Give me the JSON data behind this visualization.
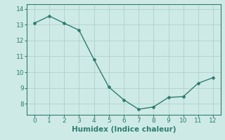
{
  "x": [
    0,
    1,
    2,
    3,
    4,
    5,
    6,
    7,
    8,
    9,
    10,
    11,
    12
  ],
  "y": [
    13.1,
    13.55,
    13.1,
    12.65,
    10.8,
    9.05,
    8.25,
    7.65,
    7.8,
    8.4,
    8.45,
    9.3,
    9.65
  ],
  "line_color": "#2e7d6e",
  "marker": "D",
  "marker_size": 2,
  "background_color": "#ceeae7",
  "grid_color": "#aed0cc",
  "xlabel": "Humidex (Indice chaleur)",
  "xlabel_fontsize": 7.5,
  "ylim": [
    7.3,
    14.3
  ],
  "xlim": [
    -0.5,
    12.5
  ],
  "yticks": [
    8,
    9,
    10,
    11,
    12,
    13,
    14
  ],
  "xticks": [
    0,
    1,
    2,
    3,
    4,
    5,
    6,
    7,
    8,
    9,
    10,
    11,
    12
  ],
  "tick_fontsize": 6.5,
  "line_width": 1.0
}
